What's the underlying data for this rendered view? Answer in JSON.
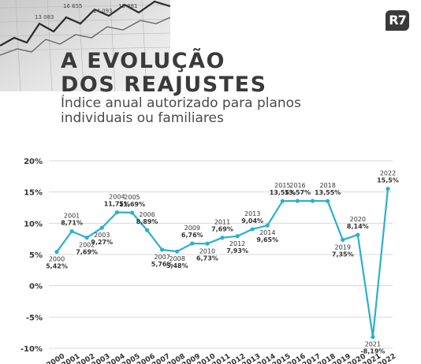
{
  "brand": {
    "logo": "R7"
  },
  "header": {
    "title_line1": "A EVOLUÇÃO",
    "title_line2": "DOS REAJUSTES",
    "subtitle_line1": "Índice anual autorizado para planos",
    "subtitle_line2": "individuais ou familiares"
  },
  "colors": {
    "line": "#2ab0cf",
    "text": "#3a3a3a",
    "grid": "#d8d8d8"
  },
  "chart_data": {
    "type": "line",
    "title": "A EVOLUÇÃO DOS REAJUSTES",
    "subtitle": "Índice anual autorizado para planos individuais ou familiares",
    "ylim": [
      -10,
      20
    ],
    "yticks": [
      "20%",
      "15%",
      "10%",
      "5%",
      "0%",
      "-5%",
      "-10%"
    ],
    "ytick_values": [
      20,
      15,
      10,
      5,
      0,
      -5,
      -10
    ],
    "grid": true,
    "x": [
      "2000",
      "2001",
      "2002",
      "2003",
      "2004",
      "2005",
      "2006",
      "2007",
      "2008",
      "2009",
      "2010",
      "2011",
      "2012",
      "2013",
      "2014",
      "2015",
      "2016",
      "2017",
      "2018",
      "2019",
      "2020",
      "2021",
      "2022"
    ],
    "xtick_labels": [
      "2000",
      "2001",
      "2002",
      "2003",
      "2004",
      "2005",
      "2006",
      "2007",
      "2008",
      "2009",
      "2010",
      "2011",
      "2012",
      "2013",
      "2014",
      "2015",
      "2016",
      "2017",
      "2018",
      "2019",
      "2020",
      "2021",
      "2022"
    ],
    "series": [
      {
        "values": [
          5.42,
          8.71,
          7.69,
          9.27,
          11.75,
          11.69,
          8.89,
          5.76,
          5.48,
          6.76,
          6.73,
          7.69,
          7.93,
          9.04,
          9.65,
          13.55,
          13.57,
          13.57,
          13.55,
          7.35,
          8.14,
          -8.19,
          15.5
        ]
      }
    ],
    "point_labels": [
      {
        "year": "2000",
        "value": "5,42%",
        "pos": "below"
      },
      {
        "year": "2001",
        "value": "8,71%",
        "pos": "above"
      },
      {
        "year": "2002",
        "value": "7,69%",
        "pos": "below"
      },
      {
        "year": "2003",
        "value": "9,27%",
        "pos": "below"
      },
      {
        "year": "2004",
        "value": "11,75%",
        "pos": "above"
      },
      {
        "year": "2005",
        "value": "11,69%",
        "pos": "above"
      },
      {
        "year": "2006",
        "value": "8,89%",
        "pos": "above"
      },
      {
        "year": "2007",
        "value": "5,76%",
        "pos": "below"
      },
      {
        "year": "2008",
        "value": "5,48%",
        "pos": "below"
      },
      {
        "year": "2009",
        "value": "6,76%",
        "pos": "above"
      },
      {
        "year": "2010",
        "value": "6,73%",
        "pos": "below"
      },
      {
        "year": "2011",
        "value": "7,69%",
        "pos": "above"
      },
      {
        "year": "2012",
        "value": "7,93%",
        "pos": "below"
      },
      {
        "year": "2013",
        "value": "9,04%",
        "pos": "above"
      },
      {
        "year": "2014",
        "value": "9,65%",
        "pos": "below"
      },
      {
        "year": "2015",
        "value": "13,55%",
        "pos": "above"
      },
      {
        "year": "2016",
        "value": "13,57%",
        "pos": "above"
      },
      {
        "year": "2018",
        "value": "13,55%",
        "pos": "above"
      },
      {
        "year": "2019",
        "value": "7,35%",
        "pos": "below"
      },
      {
        "year": "2020",
        "value": "8,14%",
        "pos": "above"
      },
      {
        "year": "2021",
        "value": "-8,19%",
        "pos": "below"
      },
      {
        "year": "2022",
        "value": "15,5%",
        "pos": "above"
      }
    ]
  }
}
